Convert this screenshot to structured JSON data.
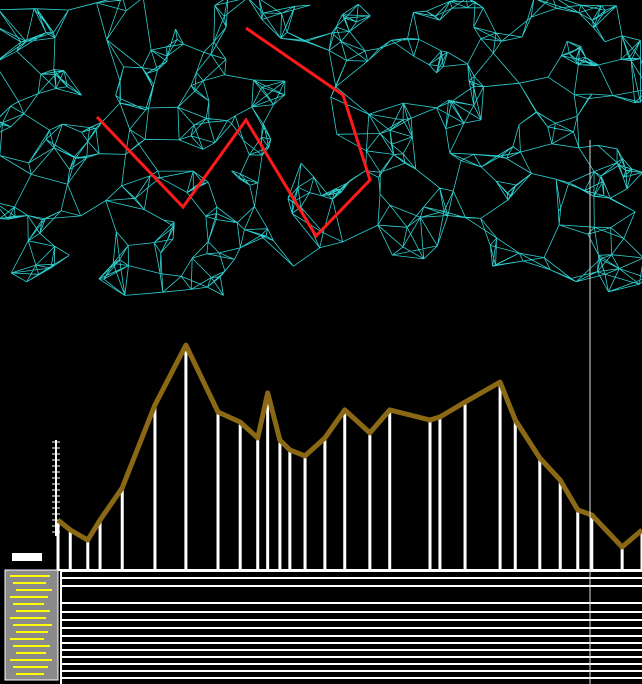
{
  "chart_data": {
    "type": "line",
    "x": [
      0,
      2.1,
      5.1,
      7.2,
      11.0,
      16.6,
      21.9,
      27.4,
      31.2,
      34.2,
      35.9,
      38.0,
      39.7,
      42.3,
      45.7,
      49.1,
      53.4,
      56.8,
      63.7,
      65.4,
      69.7,
      75.7,
      78.3,
      82.5,
      86.0,
      89.0,
      91.4,
      96.6,
      100
    ],
    "values": [
      21.7,
      17.4,
      13.0,
      21.7,
      35.7,
      71.7,
      97.8,
      68.7,
      64.3,
      57.4,
      77.0,
      56.5,
      52.2,
      49.6,
      57.4,
      69.6,
      59.6,
      69.6,
      65.2,
      66.5,
      73.0,
      81.7,
      65.2,
      48.7,
      39.1,
      26.1,
      23.9,
      10.0,
      17.4
    ],
    "xlim": [
      0,
      100
    ],
    "ylim": [
      0,
      100
    ],
    "color": "#8b6914"
  }
}
